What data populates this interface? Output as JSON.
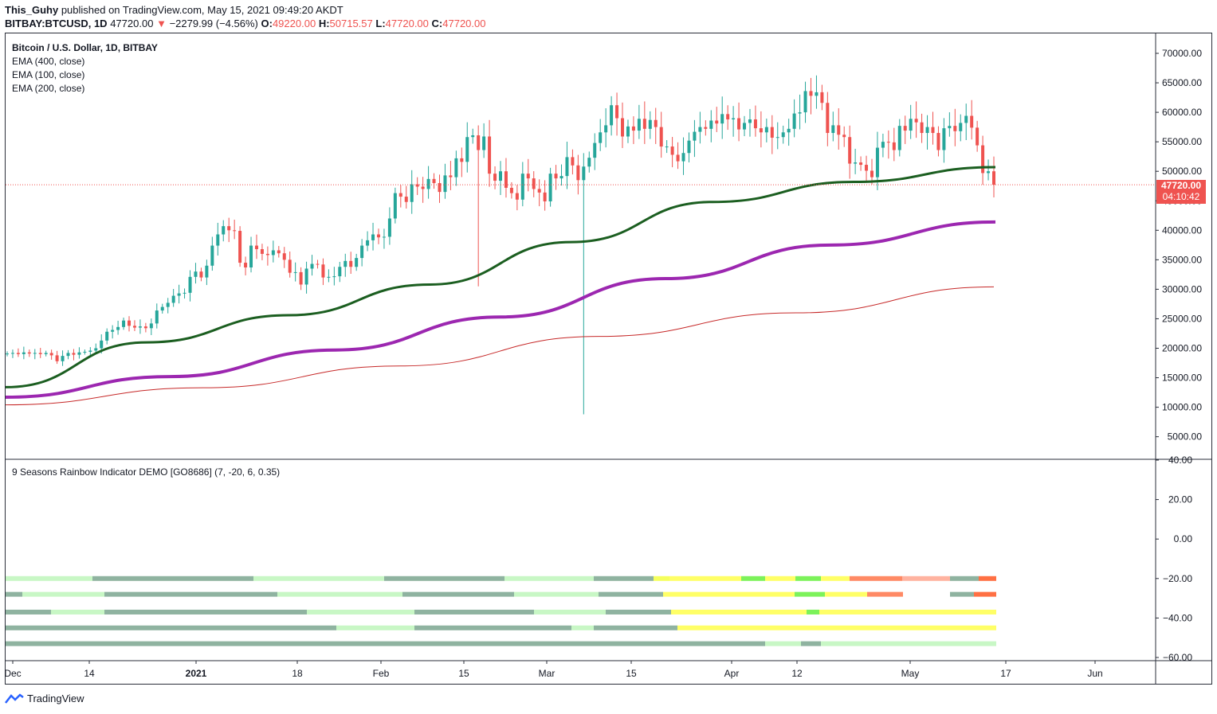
{
  "header": {
    "author": "This_Guhy",
    "published_text": "published on TradingView.com, May 15, 2021 09:49:20 AKDT",
    "symbol": "BITBAY:BTCUSD, 1D",
    "last": "47720.00",
    "change": "−2279.99 (−4.56%)",
    "o_label": "O:",
    "o": "49220.00",
    "h_label": "H:",
    "h": "50715.57",
    "l_label": "L:",
    "l": "47720.00",
    "c_label": "C:",
    "c": "47720.00"
  },
  "legend": {
    "title": "Bitcoin / U.S. Dollar, 1D, BITBAY",
    "ema1": "EMA (400, close)",
    "ema2": "EMA (100, close)",
    "ema3": "EMA (200, close)",
    "indicator": "9 Seasons Rainbow Indicator DEMO [GO8686] (7, -20, 6, 0.35)"
  },
  "price_tag": {
    "price": "47720.00",
    "countdown": "04:10:42"
  },
  "footer": {
    "brand": "TradingView"
  },
  "colors": {
    "up": "#26a69a",
    "down": "#ef5350",
    "ema_green": "#1b5e20",
    "ema_purple": "#9c27b0",
    "ema_red": "#c62828"
  },
  "chart_data": [
    {
      "type": "candlestick",
      "ylim": [
        0,
        72000
      ],
      "y_ticks": [
        "70000.00",
        "65000.00",
        "60000.00",
        "55000.00",
        "50000.00",
        "45000.00",
        "40000.00",
        "35000.00",
        "30000.00",
        "25000.00",
        "20000.00",
        "15000.00",
        "10000.00",
        "5000.00"
      ],
      "x_ticks": [
        "Dec",
        "14",
        "2021",
        "18",
        "Feb",
        "15",
        "Mar",
        "15",
        "Apr",
        "12",
        "May",
        "17",
        "Jun"
      ],
      "last_price": 47720,
      "close_series": [
        19100,
        19200,
        19000,
        19300,
        19100,
        19200,
        19000,
        19200,
        18800,
        17800,
        18700,
        19200,
        18900,
        19300,
        19400,
        19600,
        20000,
        21300,
        22800,
        23100,
        23600,
        24700,
        23800,
        23500,
        23700,
        23400,
        24200,
        26400,
        27000,
        27700,
        28900,
        29300,
        29400,
        32100,
        33000,
        32000,
        34000,
        37400,
        39300,
        40700,
        40000,
        39900,
        34500,
        33700,
        37400,
        36800,
        36000,
        35800,
        36600,
        36100,
        35000,
        32800,
        32900,
        30800,
        33500,
        34300,
        34200,
        32000,
        32100,
        32200,
        33800,
        34800,
        33800,
        35300,
        37400,
        38300,
        39300,
        38800,
        38900,
        42000,
        46300,
        45700,
        44800,
        47800,
        47400,
        47000,
        48700,
        48000,
        46500,
        49300,
        49000,
        52200,
        51600,
        55800,
        56100,
        53600,
        55900,
        49600,
        48400,
        50000,
        47200,
        46300,
        45200,
        49600,
        48800,
        47000,
        46400,
        44900,
        49600,
        48800,
        49200,
        52400,
        51000,
        48500,
        50800,
        52300,
        54800,
        56600,
        57800,
        61200,
        59000,
        55900,
        57600,
        56900,
        58900,
        57200,
        58700,
        57500,
        54200,
        54200,
        52800,
        51700,
        53100,
        55200,
        56700,
        57500,
        57200,
        58600,
        58100,
        59700,
        58800,
        59000,
        57100,
        58200,
        58800,
        57300,
        56600,
        57500,
        55700,
        55800,
        56600,
        57200,
        59800,
        60000,
        63600,
        62800,
        63400,
        61600,
        56500,
        57800,
        56200,
        55800,
        51300,
        51500,
        51100,
        50100,
        49000,
        54000,
        55000,
        54900,
        53600,
        57700,
        56900,
        58900,
        58300,
        56500,
        57500,
        56500,
        53600,
        57300,
        57700,
        56800,
        58200,
        59400,
        57400,
        54400,
        49700,
        50000,
        47720
      ],
      "ema_400": [
        13400,
        21000,
        25600,
        30800,
        38000,
        44800,
        48200,
        50700
      ],
      "ema_200": [
        11700,
        15200,
        19700,
        25300,
        31800,
        37500,
        41400
      ],
      "ema_100": [
        10400,
        13300,
        17000,
        22000,
        26000,
        30400
      ]
    },
    {
      "type": "heatmap",
      "title": "9 Seasons Rainbow Indicator DEMO [GO8686] (7, -20, 6, 0.35)",
      "ylim": [
        -60,
        40
      ],
      "y_ticks": [
        "40.00",
        "20.00",
        "0.00",
        "−20.00",
        "−40.00",
        "−60.00"
      ],
      "rows": [
        -20,
        -28,
        -37,
        -45,
        -53
      ]
    }
  ]
}
